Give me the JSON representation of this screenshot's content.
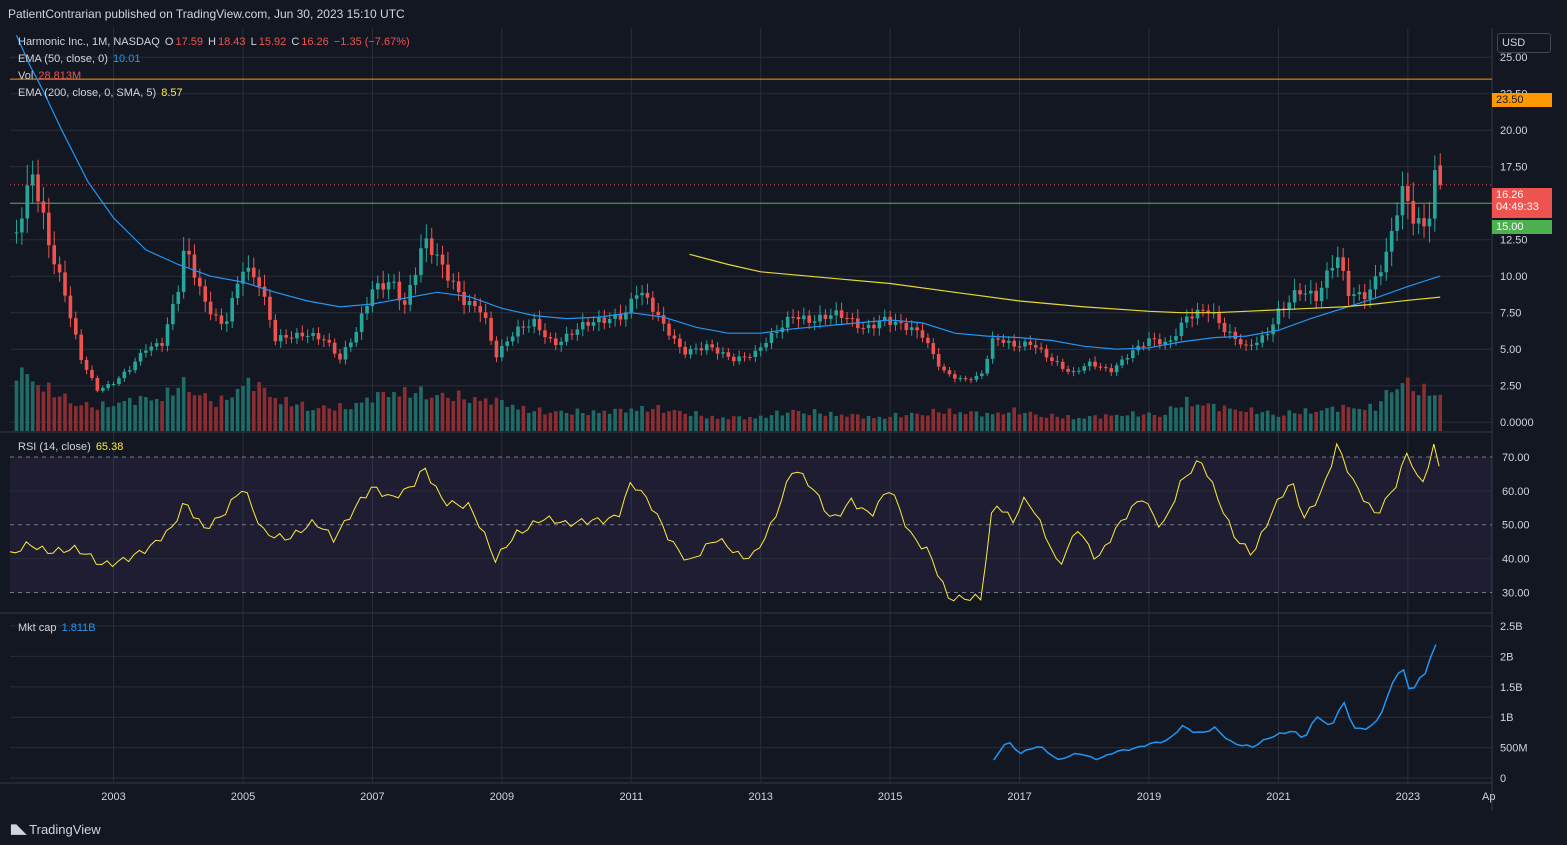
{
  "attribution": "PatientContrarian published on TradingView.com, Jun 30, 2023 15:10 UTC",
  "footer_brand": "TradingView",
  "currency_button": "USD",
  "colors": {
    "up": "#26a69a",
    "down": "#ef5350",
    "up_vol": "#1f6b67",
    "down_vol": "#8b2e33",
    "ema50": "#2196f3",
    "ema200": "#e6d92c",
    "rsi": "#ffeb3b",
    "mktcap": "#2196f3",
    "hline_orange": "#ff9800",
    "hline_green": "#4caf50",
    "bg": "#131722",
    "grid": "#2a2e39"
  },
  "legend": {
    "main": {
      "symbol": "Harmonic Inc., 1M, NASDAQ",
      "o_label": "O",
      "o": "17.59",
      "h_label": "H",
      "h": "18.43",
      "l_label": "L",
      "l": "15.92",
      "c_label": "C",
      "c": "16.26",
      "chg": "−1.35 (−7.67%)"
    },
    "ema50": {
      "label": "EMA (50, close, 0)",
      "value": "10.01"
    },
    "vol": {
      "label": "Vol",
      "value": "28.813M"
    },
    "ema200": {
      "label": "EMA (200, close, 0, SMA, 5)",
      "value": "8.57"
    },
    "rsi": {
      "label": "RSI (14, close)",
      "value": "65.38"
    },
    "mktcap": {
      "label": "Mkt cap",
      "value": "1.811B"
    }
  },
  "price_tags": {
    "level_orange": "23.50",
    "last": "16.26",
    "countdown": "04:49:33",
    "level_green": "15.00"
  },
  "chart_data": [
    {
      "type": "candlestick",
      "title": "Harmonic Inc., 1M, NASDAQ",
      "interval": "1M",
      "y_ticks": [
        "0.0000",
        "2.50",
        "5.00",
        "7.50",
        "10.00",
        "12.50",
        "15.00",
        "17.50",
        "20.00",
        "22.50",
        "25.00"
      ],
      "ylim": [
        -0.6,
        27
      ],
      "horizontal_levels": [
        23.5,
        15.0
      ],
      "x_ticks": [
        "2003",
        "2005",
        "2007",
        "2009",
        "2011",
        "2013",
        "2015",
        "2017",
        "2019",
        "2021",
        "2023",
        "Ap"
      ],
      "xlim": [
        2001.4,
        2024.3
      ],
      "close_anchors": [
        [
          2001.5,
          13.0
        ],
        [
          2001.75,
          16.5
        ],
        [
          2002.0,
          12.0
        ],
        [
          2002.25,
          9.0
        ],
        [
          2002.5,
          4.5
        ],
        [
          2002.75,
          2.2
        ],
        [
          2003.0,
          2.6
        ],
        [
          2003.25,
          3.6
        ],
        [
          2003.5,
          5.2
        ],
        [
          2003.75,
          5.6
        ],
        [
          2004.0,
          9.2
        ],
        [
          2004.1,
          11.8
        ],
        [
          2004.4,
          8.0
        ],
        [
          2004.7,
          6.6
        ],
        [
          2005.0,
          11.0
        ],
        [
          2005.25,
          9.5
        ],
        [
          2005.5,
          5.5
        ],
        [
          2005.75,
          5.8
        ],
        [
          2006.0,
          6.2
        ],
        [
          2006.25,
          5.9
        ],
        [
          2006.5,
          4.3
        ],
        [
          2006.75,
          6.0
        ],
        [
          2007.0,
          9.0
        ],
        [
          2007.3,
          10.0
        ],
        [
          2007.5,
          8.2
        ],
        [
          2007.8,
          12.3
        ],
        [
          2008.1,
          10.2
        ],
        [
          2008.4,
          8.5
        ],
        [
          2008.7,
          8.0
        ],
        [
          2008.9,
          4.5
        ],
        [
          2009.2,
          6.0
        ],
        [
          2009.5,
          6.8
        ],
        [
          2009.8,
          5.5
        ],
        [
          2010.2,
          6.5
        ],
        [
          2010.6,
          6.8
        ],
        [
          2010.9,
          7.5
        ],
        [
          2011.1,
          9.5
        ],
        [
          2011.3,
          8.2
        ],
        [
          2011.5,
          6.5
        ],
        [
          2011.8,
          4.6
        ],
        [
          2012.2,
          5.4
        ],
        [
          2012.6,
          4.3
        ],
        [
          2012.9,
          4.5
        ],
        [
          2013.2,
          6.0
        ],
        [
          2013.5,
          7.6
        ],
        [
          2013.8,
          7.0
        ],
        [
          2014.2,
          7.2
        ],
        [
          2014.6,
          6.5
        ],
        [
          2014.9,
          7.3
        ],
        [
          2015.2,
          6.5
        ],
        [
          2015.5,
          5.8
        ],
        [
          2015.8,
          3.6
        ],
        [
          2016.1,
          3.0
        ],
        [
          2016.4,
          3.1
        ],
        [
          2016.6,
          5.6
        ],
        [
          2016.9,
          5.2
        ],
        [
          2017.2,
          5.6
        ],
        [
          2017.5,
          4.3
        ],
        [
          2017.8,
          3.2
        ],
        [
          2018.1,
          4.0
        ],
        [
          2018.4,
          3.6
        ],
        [
          2018.7,
          4.8
        ],
        [
          2019.0,
          5.5
        ],
        [
          2019.3,
          5.2
        ],
        [
          2019.6,
          7.5
        ],
        [
          2019.9,
          8.0
        ],
        [
          2020.2,
          6.0
        ],
        [
          2020.5,
          5.0
        ],
        [
          2020.8,
          6.0
        ],
        [
          2021.0,
          7.8
        ],
        [
          2021.3,
          9.0
        ],
        [
          2021.6,
          8.2
        ],
        [
          2021.9,
          11.5
        ],
        [
          2022.1,
          9.0
        ],
        [
          2022.4,
          9.0
        ],
        [
          2022.7,
          11.5
        ],
        [
          2022.9,
          15.5
        ],
        [
          2023.1,
          13.8
        ],
        [
          2023.3,
          13.5
        ],
        [
          2023.4,
          17.6
        ],
        [
          2023.5,
          16.26
        ]
      ],
      "last": {
        "open": 17.59,
        "high": 18.43,
        "low": 15.92,
        "close": 16.26
      }
    },
    {
      "type": "line",
      "name": "EMA (50, close, 0)",
      "points": [
        [
          2001.5,
          26.5
        ],
        [
          2001.7,
          24.5
        ],
        [
          2001.9,
          22.8
        ],
        [
          2002.2,
          20.0
        ],
        [
          2002.6,
          16.5
        ],
        [
          2003.0,
          14.0
        ],
        [
          2003.5,
          11.8
        ],
        [
          2004.0,
          10.8
        ],
        [
          2004.5,
          10.0
        ],
        [
          2005.0,
          9.6
        ],
        [
          2005.5,
          8.9
        ],
        [
          2006.0,
          8.3
        ],
        [
          2006.5,
          7.9
        ],
        [
          2007.0,
          8.1
        ],
        [
          2007.5,
          8.5
        ],
        [
          2008.0,
          8.9
        ],
        [
          2008.5,
          8.6
        ],
        [
          2009.0,
          7.8
        ],
        [
          2009.5,
          7.3
        ],
        [
          2010.0,
          7.1
        ],
        [
          2010.5,
          7.2
        ],
        [
          2011.0,
          7.5
        ],
        [
          2011.5,
          7.2
        ],
        [
          2012.0,
          6.5
        ],
        [
          2012.5,
          6.1
        ],
        [
          2013.0,
          6.1
        ],
        [
          2013.5,
          6.4
        ],
        [
          2014.0,
          6.6
        ],
        [
          2014.5,
          6.8
        ],
        [
          2015.0,
          7.0
        ],
        [
          2015.5,
          6.8
        ],
        [
          2016.0,
          6.1
        ],
        [
          2016.5,
          5.9
        ],
        [
          2017.0,
          5.8
        ],
        [
          2017.5,
          5.6
        ],
        [
          2018.0,
          5.2
        ],
        [
          2018.5,
          5.0
        ],
        [
          2019.0,
          5.1
        ],
        [
          2019.5,
          5.5
        ],
        [
          2020.0,
          5.8
        ],
        [
          2020.5,
          5.9
        ],
        [
          2021.0,
          6.3
        ],
        [
          2021.5,
          7.1
        ],
        [
          2022.0,
          7.8
        ],
        [
          2022.5,
          8.5
        ],
        [
          2023.0,
          9.3
        ],
        [
          2023.5,
          10.01
        ]
      ]
    },
    {
      "type": "line",
      "name": "EMA (200, close, 0, SMA, 5)",
      "points": [
        [
          2011.9,
          11.5
        ],
        [
          2012.5,
          10.8
        ],
        [
          2013.0,
          10.3
        ],
        [
          2014.0,
          9.9
        ],
        [
          2015.0,
          9.5
        ],
        [
          2016.0,
          8.9
        ],
        [
          2017.0,
          8.3
        ],
        [
          2018.0,
          7.9
        ],
        [
          2019.0,
          7.6
        ],
        [
          2019.5,
          7.5
        ],
        [
          2020.0,
          7.5
        ],
        [
          2020.5,
          7.6
        ],
        [
          2021.0,
          7.7
        ],
        [
          2021.5,
          7.8
        ],
        [
          2022.0,
          7.9
        ],
        [
          2022.5,
          8.1
        ],
        [
          2023.0,
          8.35
        ],
        [
          2023.5,
          8.57
        ]
      ]
    },
    {
      "type": "bar",
      "name": "Vol",
      "relative_height_anchors": [
        [
          2001.5,
          0.9
        ],
        [
          2001.8,
          0.75
        ],
        [
          2002.2,
          0.5
        ],
        [
          2002.7,
          0.35
        ],
        [
          2003.2,
          0.45
        ],
        [
          2003.7,
          0.5
        ],
        [
          2004.1,
          0.7
        ],
        [
          2004.6,
          0.4
        ],
        [
          2005.1,
          0.75
        ],
        [
          2005.5,
          0.5
        ],
        [
          2006.0,
          0.35
        ],
        [
          2006.6,
          0.35
        ],
        [
          2007.0,
          0.5
        ],
        [
          2007.4,
          0.6
        ],
        [
          2007.9,
          0.55
        ],
        [
          2008.4,
          0.5
        ],
        [
          2008.9,
          0.45
        ],
        [
          2009.5,
          0.3
        ],
        [
          2010.2,
          0.28
        ],
        [
          2010.8,
          0.3
        ],
        [
          2011.2,
          0.35
        ],
        [
          2011.7,
          0.3
        ],
        [
          2012.3,
          0.2
        ],
        [
          2012.9,
          0.2
        ],
        [
          2013.5,
          0.3
        ],
        [
          2014.2,
          0.25
        ],
        [
          2014.8,
          0.2
        ],
        [
          2015.3,
          0.25
        ],
        [
          2015.9,
          0.3
        ],
        [
          2016.5,
          0.25
        ],
        [
          2016.9,
          0.3
        ],
        [
          2017.5,
          0.22
        ],
        [
          2018.0,
          0.2
        ],
        [
          2018.6,
          0.25
        ],
        [
          2019.2,
          0.25
        ],
        [
          2019.6,
          0.45
        ],
        [
          2020.1,
          0.35
        ],
        [
          2020.6,
          0.3
        ],
        [
          2021.0,
          0.25
        ],
        [
          2021.5,
          0.3
        ],
        [
          2022.0,
          0.35
        ],
        [
          2022.5,
          0.35
        ],
        [
          2022.9,
          0.8
        ],
        [
          2023.1,
          0.6
        ],
        [
          2023.4,
          0.6
        ],
        [
          2023.5,
          0.55
        ]
      ]
    },
    {
      "type": "line",
      "name": "RSI (14, close)",
      "y_ticks": [
        "30.00",
        "40.00",
        "50.00",
        "60.00",
        "70.00"
      ],
      "ylim": [
        26,
        75
      ],
      "band": [
        30,
        70
      ],
      "points": [
        [
          2001.4,
          40
        ],
        [
          2001.7,
          45
        ],
        [
          2002.0,
          43
        ],
        [
          2002.4,
          42
        ],
        [
          2002.8,
          38
        ],
        [
          2003.2,
          41
        ],
        [
          2003.6,
          43
        ],
        [
          2003.9,
          48
        ],
        [
          2004.1,
          57
        ],
        [
          2004.4,
          50
        ],
        [
          2004.7,
          53
        ],
        [
          2005.0,
          60
        ],
        [
          2005.3,
          48
        ],
        [
          2005.7,
          47
        ],
        [
          2006.1,
          50
        ],
        [
          2006.4,
          45
        ],
        [
          2006.8,
          58
        ],
        [
          2007.0,
          62
        ],
        [
          2007.3,
          57
        ],
        [
          2007.6,
          60
        ],
        [
          2007.8,
          67
        ],
        [
          2008.1,
          58
        ],
        [
          2008.5,
          55
        ],
        [
          2008.9,
          39
        ],
        [
          2009.2,
          48
        ],
        [
          2009.6,
          52
        ],
        [
          2010.0,
          49
        ],
        [
          2010.4,
          52
        ],
        [
          2010.8,
          53
        ],
        [
          2011.0,
          62
        ],
        [
          2011.3,
          55
        ],
        [
          2011.6,
          46
        ],
        [
          2011.9,
          40
        ],
        [
          2012.3,
          45
        ],
        [
          2012.7,
          40
        ],
        [
          2012.9,
          42
        ],
        [
          2013.2,
          52
        ],
        [
          2013.5,
          66
        ],
        [
          2013.8,
          60
        ],
        [
          2014.1,
          52
        ],
        [
          2014.4,
          58
        ],
        [
          2014.7,
          52
        ],
        [
          2015.0,
          60
        ],
        [
          2015.3,
          48
        ],
        [
          2015.6,
          43
        ],
        [
          2015.9,
          28
        ],
        [
          2016.1,
          27
        ],
        [
          2016.4,
          28
        ],
        [
          2016.6,
          58
        ],
        [
          2016.9,
          52
        ],
        [
          2017.1,
          58
        ],
        [
          2017.4,
          46
        ],
        [
          2017.6,
          37
        ],
        [
          2017.9,
          50
        ],
        [
          2018.2,
          40
        ],
        [
          2018.5,
          48
        ],
        [
          2018.9,
          58
        ],
        [
          2019.2,
          50
        ],
        [
          2019.5,
          63
        ],
        [
          2019.8,
          68
        ],
        [
          2020.0,
          60
        ],
        [
          2020.3,
          48
        ],
        [
          2020.6,
          42
        ],
        [
          2020.9,
          53
        ],
        [
          2021.2,
          62
        ],
        [
          2021.4,
          52
        ],
        [
          2021.7,
          62
        ],
        [
          2021.9,
          74
        ],
        [
          2022.2,
          60
        ],
        [
          2022.5,
          52
        ],
        [
          2022.8,
          62
        ],
        [
          2023.0,
          73
        ],
        [
          2023.2,
          61
        ],
        [
          2023.4,
          72
        ],
        [
          2023.5,
          65.38
        ]
      ]
    },
    {
      "type": "line",
      "name": "Mkt cap",
      "y_ticks": [
        "0",
        "500M",
        "1B",
        "1.5B",
        "2B",
        "2.5B"
      ],
      "ylim": [
        0,
        2.55
      ],
      "points": [
        [
          2016.6,
          0.28
        ],
        [
          2016.8,
          0.6
        ],
        [
          2017.0,
          0.4
        ],
        [
          2017.3,
          0.55
        ],
        [
          2017.6,
          0.3
        ],
        [
          2017.9,
          0.4
        ],
        [
          2018.2,
          0.3
        ],
        [
          2018.5,
          0.45
        ],
        [
          2018.8,
          0.5
        ],
        [
          2019.0,
          0.55
        ],
        [
          2019.3,
          0.6
        ],
        [
          2019.5,
          0.85
        ],
        [
          2019.8,
          0.75
        ],
        [
          2020.0,
          0.85
        ],
        [
          2020.3,
          0.55
        ],
        [
          2020.6,
          0.5
        ],
        [
          2020.9,
          0.7
        ],
        [
          2021.2,
          0.8
        ],
        [
          2021.4,
          0.65
        ],
        [
          2021.6,
          1.0
        ],
        [
          2021.8,
          0.8
        ],
        [
          2022.0,
          1.25
        ],
        [
          2022.2,
          0.8
        ],
        [
          2022.5,
          0.9
        ],
        [
          2022.7,
          1.35
        ],
        [
          2022.9,
          1.85
        ],
        [
          2023.0,
          1.4
        ],
        [
          2023.1,
          1.5
        ],
        [
          2023.3,
          1.75
        ],
        [
          2023.4,
          2.4
        ],
        [
          2023.5,
          1.811
        ]
      ]
    }
  ]
}
